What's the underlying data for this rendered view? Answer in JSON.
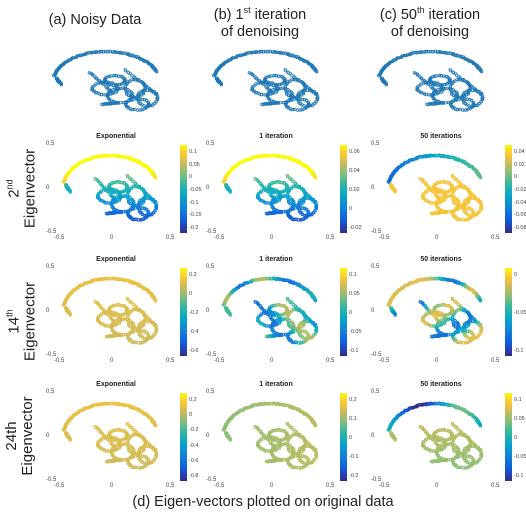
{
  "titles": {
    "col_a": "(a) Noisy Data",
    "col_b_1": "(b) 1",
    "col_b_sup": "st",
    "col_b_2": " iteration",
    "col_b_3": "of denoising",
    "col_c_1": "(c) 50",
    "col_c_sup": "th",
    "col_c_2": " iteration",
    "col_c_3": "of denoising"
  },
  "rows": {
    "r1_a": "2",
    "r1_sup": "nd",
    "r1_b": "Eigenvector",
    "r2_a": "14",
    "r2_sup": "th",
    "r2_b": "Eigenvector",
    "r3_a": "24th",
    "r3_b": "Eigenvector"
  },
  "caption": "(d) Eigen-vectors plotted on original data",
  "chart_data": [
    {
      "type": "scatter",
      "id": "noisy-a",
      "color": "#1f77b4"
    },
    {
      "type": "scatter",
      "id": "noisy-b",
      "color": "#1f77b4"
    },
    {
      "type": "scatter",
      "id": "noisy-c",
      "color": "#1f77b4"
    },
    {
      "type": "scatter",
      "id": "r1c1",
      "title": "Exponential",
      "xticks": [
        "-0.5",
        "0",
        "0.5"
      ],
      "yticks": [
        "0.5",
        "0",
        "-0.5"
      ],
      "xlim": [
        -0.5,
        0.5
      ],
      "ylim": [
        -0.5,
        0.5
      ],
      "colorbar": [
        "0.1",
        "0.05",
        "0",
        "-0.05",
        "-0.1",
        "-0.15",
        "-0.2"
      ],
      "pattern": "gradient-yx",
      "grid": false
    },
    {
      "type": "scatter",
      "id": "r1c2",
      "title": "1 iteration",
      "xticks": [
        "-0.5",
        "0",
        "0.5"
      ],
      "yticks": [
        "0.5",
        "0",
        "-0.5"
      ],
      "xlim": [
        -0.5,
        0.5
      ],
      "ylim": [
        -0.5,
        0.5
      ],
      "colorbar": [
        "0.06",
        "0.04",
        "0.02",
        "0",
        "-0.02"
      ],
      "pattern": "gradient-yx",
      "grid": false
    },
    {
      "type": "scatter",
      "id": "r1c3",
      "title": "50 iterations",
      "xticks": [
        "-0.5",
        "0",
        "0.5"
      ],
      "yticks": [
        "0.5",
        "0",
        "-0.5"
      ],
      "xlim": [
        -0.5,
        0.5
      ],
      "ylim": [
        -0.5,
        0.5
      ],
      "colorbar": [
        "0.04",
        "0.02",
        "0",
        "-0.02",
        "-0.04",
        "-0.06",
        "-0.08"
      ],
      "pattern": "arc-low",
      "grid": false
    },
    {
      "type": "scatter",
      "id": "r2c1",
      "title": "Exponential",
      "xticks": [
        "-0.5",
        "0",
        "0.5"
      ],
      "yticks": [
        "0.5",
        "0",
        "-0.5"
      ],
      "xlim": [
        -0.5,
        0.5
      ],
      "ylim": [
        -0.5,
        0.5
      ],
      "colorbar": [
        "0.2",
        "0",
        "-0.2",
        "-0.4",
        "-0.6"
      ],
      "pattern": "uniform-high",
      "grid": false
    },
    {
      "type": "scatter",
      "id": "r2c2",
      "title": "1 iteration",
      "xticks": [
        "-0.5",
        "0",
        "0.5"
      ],
      "yticks": [
        "0.5",
        "0",
        "-0.5"
      ],
      "xlim": [
        -0.5,
        0.5
      ],
      "ylim": [
        -0.5,
        0.5
      ],
      "colorbar": [
        "0.1",
        "0.05",
        "0",
        "-0.05",
        "-0.1"
      ],
      "pattern": "mixed",
      "grid": false
    },
    {
      "type": "scatter",
      "id": "r2c3",
      "title": "50 iterations",
      "xticks": [
        "-0.5",
        "0",
        "0.5"
      ],
      "yticks": [
        "0.5",
        "0",
        "-0.5"
      ],
      "xlim": [
        -0.5,
        0.5
      ],
      "ylim": [
        -0.5,
        0.5
      ],
      "colorbar": [
        "0",
        "-0.05",
        "-0.1"
      ],
      "pattern": "mixed2",
      "grid": false
    },
    {
      "type": "scatter",
      "id": "r3c1",
      "title": "Exponential",
      "xticks": [
        "-0.5",
        "0",
        "0.5"
      ],
      "yticks": [
        "0.5",
        "0",
        "-0.5"
      ],
      "xlim": [
        -0.5,
        0.5
      ],
      "ylim": [
        -0.5,
        0.5
      ],
      "colorbar": [
        "0.2",
        "0",
        "-0.2",
        "-0.4",
        "-0.6",
        "-0.8"
      ],
      "pattern": "uniform-high",
      "grid": false
    },
    {
      "type": "scatter",
      "id": "r3c2",
      "title": "1 iteration",
      "xticks": [
        "-0.5",
        "0",
        "0.5"
      ],
      "yticks": [
        "0.5",
        "0",
        "-0.5"
      ],
      "xlim": [
        -0.5,
        0.5
      ],
      "ylim": [
        -0.5,
        0.5
      ],
      "colorbar": [
        "0.2",
        "0.1",
        "0",
        "-0.1",
        "-0.2"
      ],
      "pattern": "uniform-mid",
      "grid": false
    },
    {
      "type": "scatter",
      "id": "r3c3",
      "title": "50 iterations",
      "xticks": [
        "-0.5",
        "0",
        "0.5"
      ],
      "yticks": [
        "0.5",
        "0",
        "-0.5"
      ],
      "xlim": [
        -0.5,
        0.5
      ],
      "ylim": [
        -0.5,
        0.5
      ],
      "colorbar": [
        "0.1",
        "0.05",
        "0",
        "-0.05",
        "-0.1"
      ],
      "pattern": "arc-mixed",
      "grid": false
    }
  ]
}
